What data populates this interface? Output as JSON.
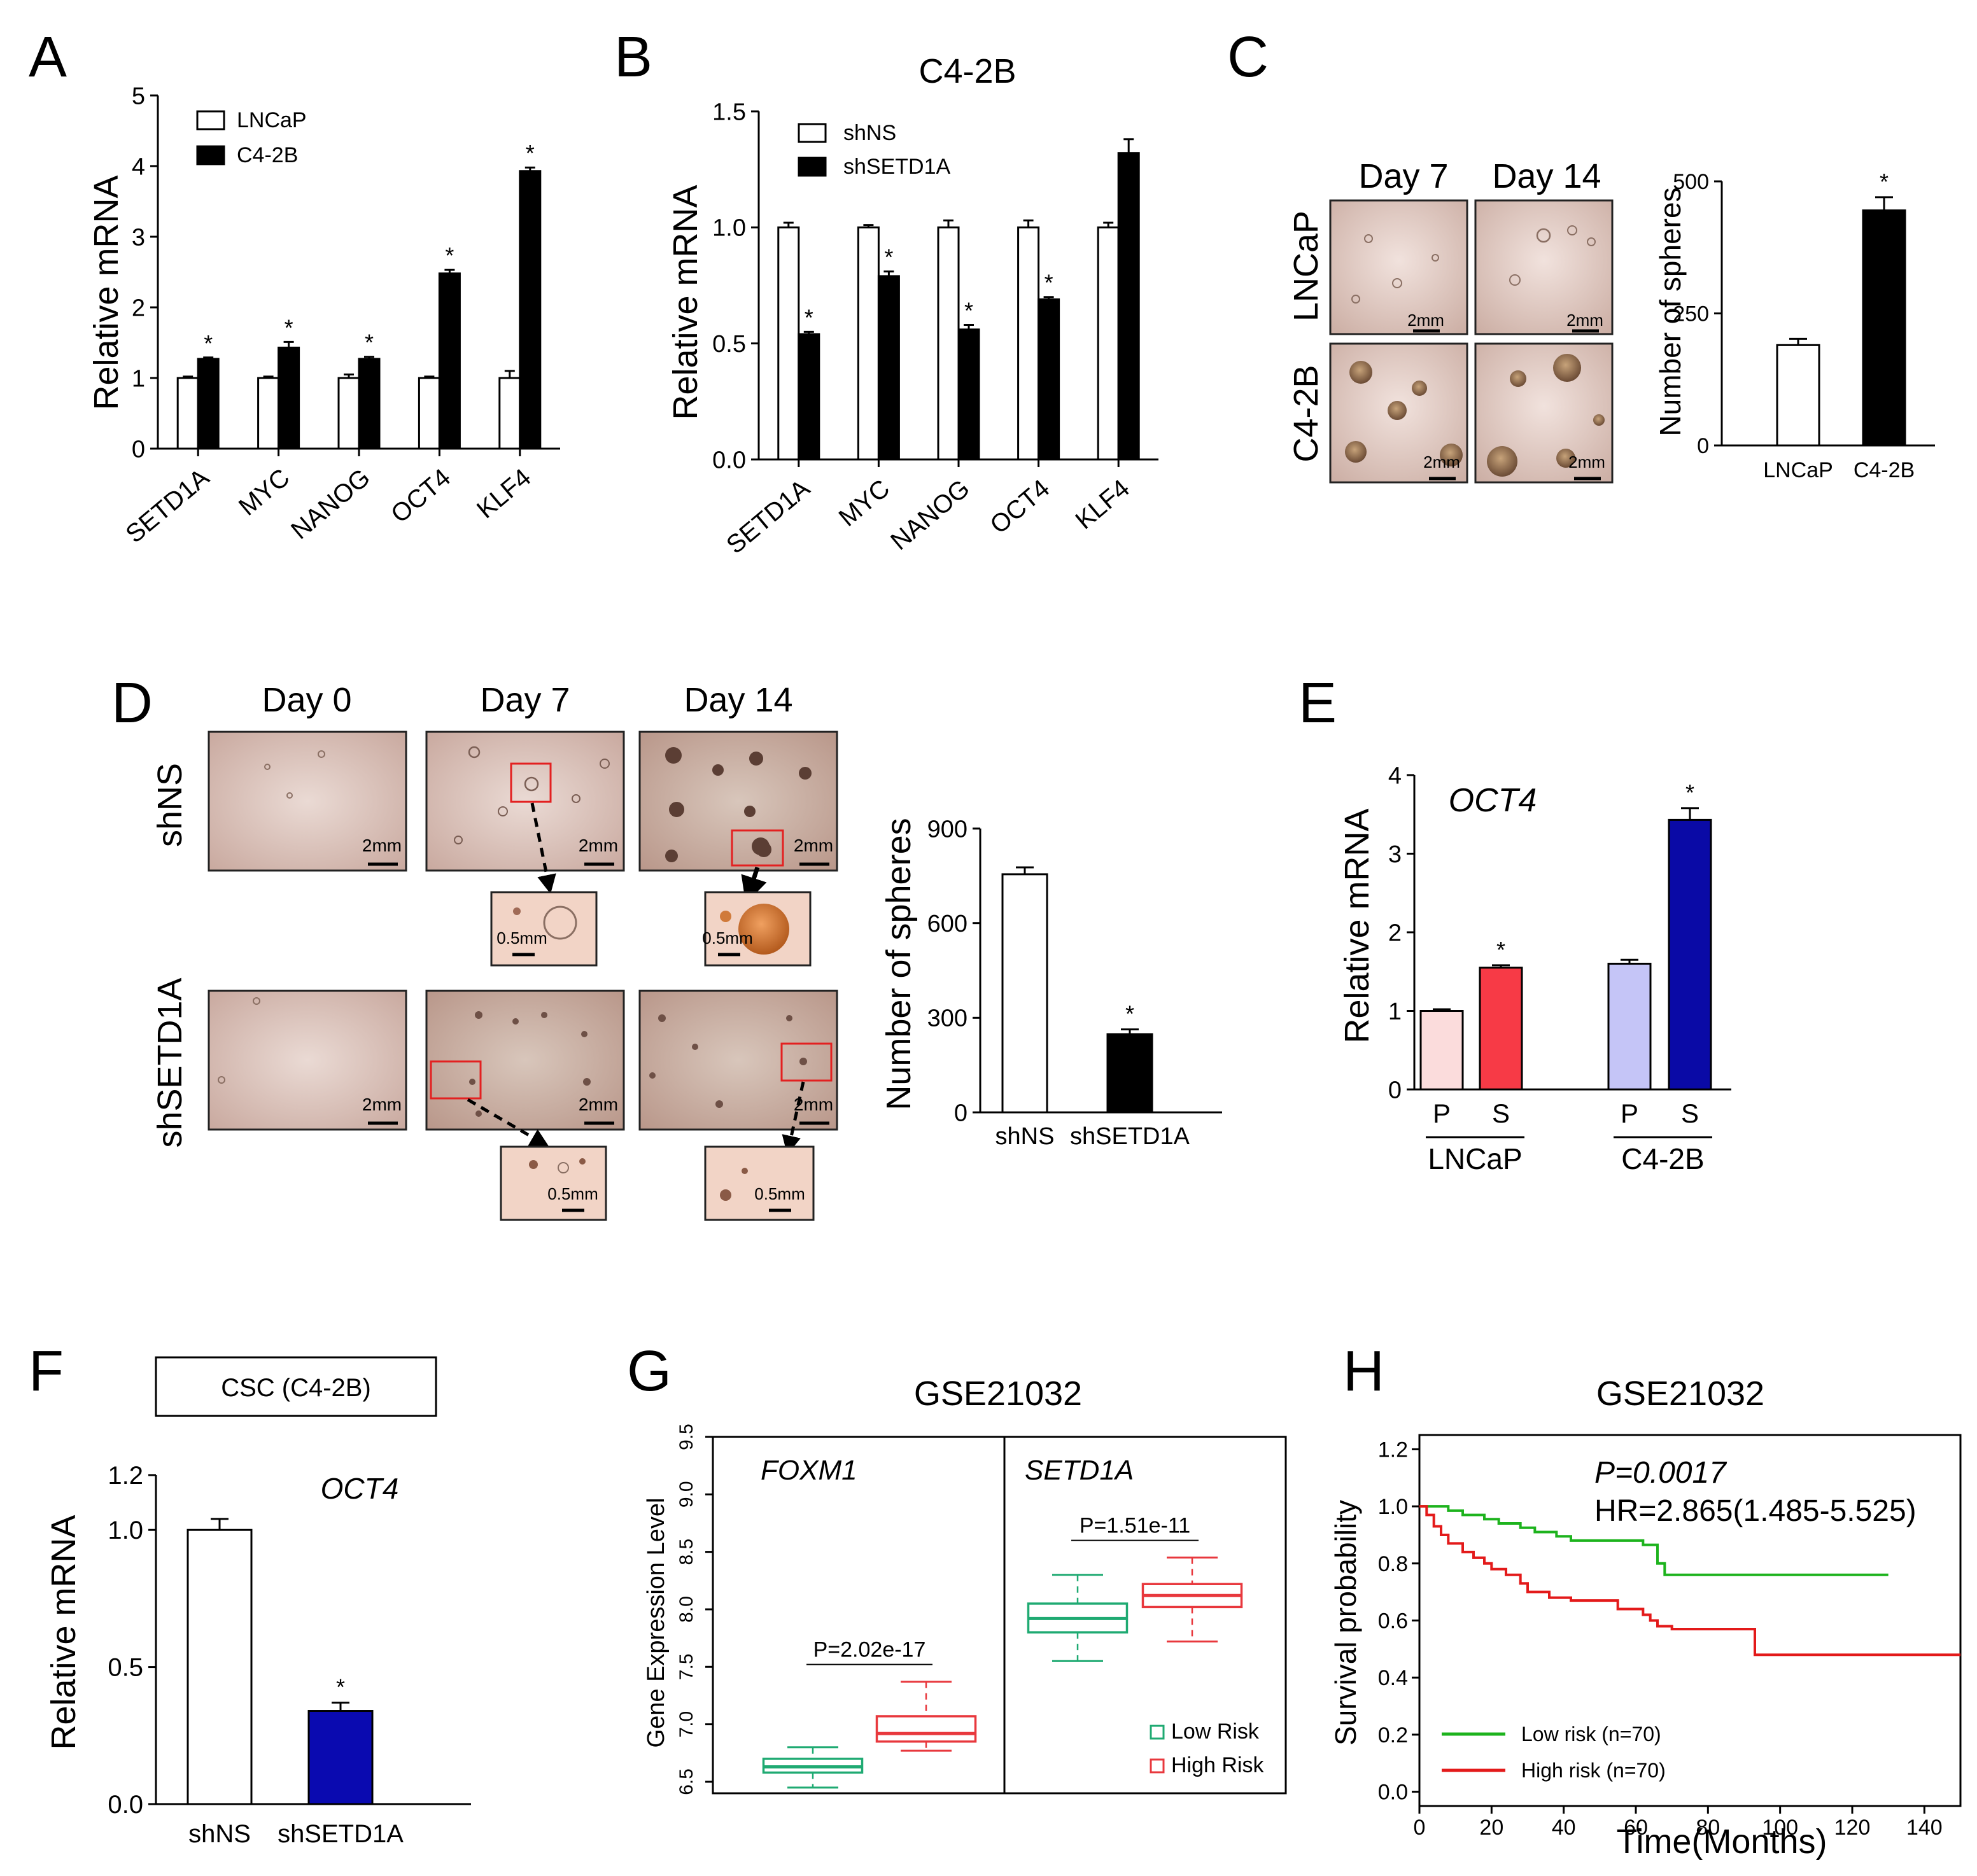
{
  "panels": {
    "A": {
      "label": "A",
      "chart_data": {
        "type": "bar",
        "title": "",
        "ylabel": "Relative mRNA",
        "ylim": [
          0,
          5
        ],
        "yticks": [
          "0",
          "1",
          "2",
          "3",
          "4",
          "5"
        ],
        "categories": [
          "SETD1A",
          "MYC",
          "NANOG",
          "OCT4",
          "KLF4"
        ],
        "series": [
          {
            "name": "LNCaP",
            "color": "#ffffff",
            "values": [
              1.0,
              1.0,
              1.0,
              1.0,
              1.0
            ],
            "errors": [
              0.02,
              0.02,
              0.05,
              0.02,
              0.1
            ]
          },
          {
            "name": "C4-2B",
            "color": "#000000",
            "values": [
              1.27,
              1.43,
              1.27,
              2.48,
              3.93
            ],
            "errors": [
              0.02,
              0.08,
              0.03,
              0.05,
              0.05
            ]
          }
        ],
        "significance": [
          "*",
          "*",
          "*",
          "*",
          "*"
        ]
      }
    },
    "B": {
      "label": "B",
      "chart_data": {
        "type": "bar",
        "title": "C4-2B",
        "ylabel": "Relative mRNA",
        "ylim": [
          0,
          1.5
        ],
        "yticks": [
          "0.0",
          "0.5",
          "1.0",
          "1.5"
        ],
        "categories": [
          "SETD1A",
          "MYC",
          "NANOG",
          "OCT4",
          "KLF4"
        ],
        "series": [
          {
            "name": "shNS",
            "color": "#ffffff",
            "values": [
              1.0,
              1.0,
              1.0,
              1.0,
              1.0
            ],
            "errors": [
              0.02,
              0.01,
              0.03,
              0.03,
              0.02
            ]
          },
          {
            "name": "shSETD1A",
            "color": "#000000",
            "values": [
              0.54,
              0.79,
              0.56,
              0.69,
              1.32
            ],
            "errors": [
              0.01,
              0.02,
              0.02,
              0.01,
              0.06
            ]
          }
        ],
        "significance": [
          "*",
          "*",
          "*",
          "*",
          ""
        ]
      }
    },
    "C": {
      "label": "C",
      "days": [
        "Day 7",
        "Day 14"
      ],
      "rows": [
        "LNCaP",
        "C4-2B"
      ],
      "scale_bar": "2mm",
      "chart_data": {
        "type": "bar",
        "ylabel": "Number of spheres",
        "ylim": [
          0,
          500
        ],
        "yticks": [
          "0",
          "250",
          "500"
        ],
        "categories": [
          "LNCaP",
          "C4-2B"
        ],
        "values": [
          190,
          445
        ],
        "errors": [
          12,
          25
        ],
        "colors": [
          "#ffffff",
          "#000000"
        ],
        "significance": [
          "",
          "*"
        ]
      }
    },
    "D": {
      "label": "D",
      "days": [
        "Day 0",
        "Day 7",
        "Day 14"
      ],
      "rows": [
        "shNS",
        "shSETD1A"
      ],
      "scale_bar": "2mm",
      "inset_scale_bar": "0.5mm",
      "chart_data": {
        "type": "bar",
        "ylabel": "Number of spheres",
        "ylim": [
          0,
          900
        ],
        "yticks": [
          "0",
          "300",
          "600",
          "900"
        ],
        "categories": [
          "shNS",
          "shSETD1A"
        ],
        "values": [
          755,
          248
        ],
        "errors": [
          22,
          15
        ],
        "colors": [
          "#ffffff",
          "#000000"
        ],
        "significance": [
          "",
          "*"
        ]
      }
    },
    "E": {
      "label": "E",
      "chart_data": {
        "type": "bar",
        "title": "OCT4",
        "ylabel": "Relative mRNA",
        "ylim": [
          0,
          4
        ],
        "yticks": [
          "0",
          "1",
          "2",
          "3",
          "4"
        ],
        "categories": [
          "P",
          "S",
          "P",
          "S"
        ],
        "groups": [
          "LNCaP",
          "C4-2B"
        ],
        "values": [
          1.0,
          1.55,
          1.6,
          3.43
        ],
        "errors": [
          0.02,
          0.03,
          0.05,
          0.15
        ],
        "colors": [
          "#fbdcdc",
          "#f73a46",
          "#c5c5f7",
          "#0a0aa6"
        ],
        "significance": [
          "",
          "*",
          "",
          "*"
        ]
      }
    },
    "F": {
      "label": "F",
      "box_title": "CSC (C4-2B)",
      "chart_data": {
        "type": "bar",
        "title": "OCT4",
        "ylabel": "Relative mRNA",
        "ylim": [
          0,
          1.2
        ],
        "yticks": [
          "0.0",
          "0.5",
          "1.0",
          "1.2"
        ],
        "categories": [
          "shNS",
          "shSETD1A"
        ],
        "values": [
          1.0,
          0.34
        ],
        "errors": [
          0.04,
          0.03
        ],
        "colors": [
          "#ffffff",
          "#0a0ab0"
        ],
        "significance": [
          "",
          "*"
        ]
      }
    },
    "G": {
      "label": "G",
      "chart_data": {
        "type": "box",
        "title": "GSE21032",
        "ylabel": "Gene Expression Level",
        "ylim": [
          6.4,
          9.5
        ],
        "yticks": [
          "6.5",
          "7.0",
          "7.5",
          "8.0",
          "8.5",
          "9.0",
          "9.5"
        ],
        "genes": [
          "FOXM1",
          "SETD1A"
        ],
        "pvalues": [
          "P=2.02e-17",
          "P=1.51e-11"
        ],
        "legend": [
          "Low Risk",
          "High Risk"
        ],
        "colors": [
          "#1faa72",
          "#e8383d"
        ],
        "boxes": [
          {
            "gene": "FOXM1",
            "group": "Low Risk",
            "min": 6.45,
            "q1": 6.58,
            "median": 6.63,
            "q3": 6.7,
            "max": 6.8
          },
          {
            "gene": "FOXM1",
            "group": "High Risk",
            "min": 6.77,
            "q1": 6.85,
            "median": 6.92,
            "q3": 7.07,
            "max": 7.37
          },
          {
            "gene": "SETD1A",
            "group": "Low Risk",
            "min": 7.55,
            "q1": 7.8,
            "median": 7.92,
            "q3": 8.05,
            "max": 8.3
          },
          {
            "gene": "SETD1A",
            "group": "High Risk",
            "min": 7.72,
            "q1": 8.02,
            "median": 8.12,
            "q3": 8.22,
            "max": 8.45
          }
        ]
      }
    },
    "H": {
      "label": "H",
      "chart_data": {
        "type": "line",
        "title": "GSE21032",
        "xlabel": "Time(Months)",
        "ylabel": "Survival probability",
        "xlim": [
          0,
          150
        ],
        "ylim": [
          -0.05,
          1.25
        ],
        "xticks": [
          "0",
          "20",
          "40",
          "60",
          "80",
          "100",
          "120",
          "140"
        ],
        "yticks": [
          "0.0",
          "0.2",
          "0.4",
          "0.6",
          "0.8",
          "1.0",
          "1.2"
        ],
        "p_text": "P=0.0017",
        "hr_text": "HR=2.865(1.485-5.525)",
        "series": [
          {
            "name": "Low risk (n=70)",
            "color": "#1db31d",
            "x": [
              0,
              8,
              12,
              18,
              22,
              28,
              32,
              38,
              42,
              48,
              56,
              62,
              66,
              68,
              130
            ],
            "y": [
              1.0,
              0.985,
              0.97,
              0.955,
              0.94,
              0.925,
              0.91,
              0.895,
              0.88,
              0.88,
              0.88,
              0.865,
              0.8,
              0.76,
              0.76
            ]
          },
          {
            "name": "High risk (n=70)",
            "color": "#e31a1a",
            "x": [
              0,
              2,
              4,
              6,
              8,
              12,
              15,
              18,
              20,
              24,
              28,
              30,
              36,
              42,
              48,
              55,
              62,
              64,
              66,
              70,
              86,
              93,
              150
            ],
            "y": [
              1.0,
              0.97,
              0.93,
              0.9,
              0.87,
              0.84,
              0.82,
              0.8,
              0.78,
              0.76,
              0.73,
              0.7,
              0.68,
              0.67,
              0.67,
              0.64,
              0.62,
              0.6,
              0.58,
              0.57,
              0.57,
              0.48,
              0.48
            ]
          }
        ]
      }
    }
  }
}
